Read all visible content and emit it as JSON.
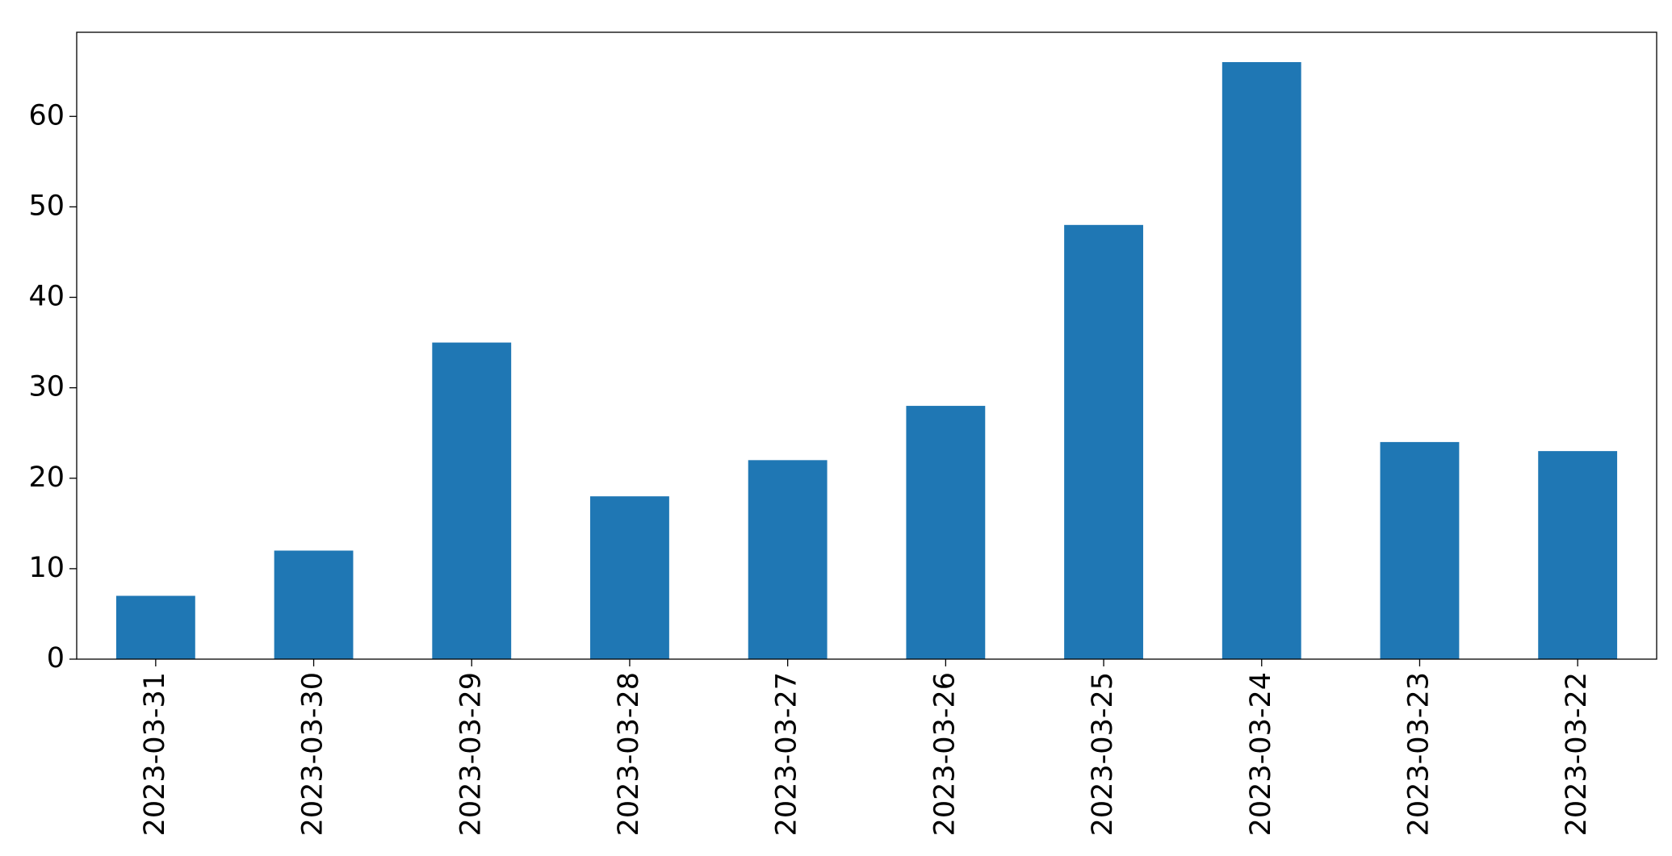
{
  "chart_data": {
    "type": "bar",
    "categories": [
      "2023-03-31",
      "2023-03-30",
      "2023-03-29",
      "2023-03-28",
      "2023-03-27",
      "2023-03-26",
      "2023-03-25",
      "2023-03-24",
      "2023-03-23",
      "2023-03-22"
    ],
    "values": [
      7,
      12,
      35,
      18,
      22,
      28,
      48,
      66,
      24,
      23
    ],
    "color": "#1f77b4",
    "ylim": [
      0,
      69.3
    ],
    "yticks": [
      0,
      10,
      20,
      30,
      40,
      50,
      60
    ],
    "grid": false
  }
}
